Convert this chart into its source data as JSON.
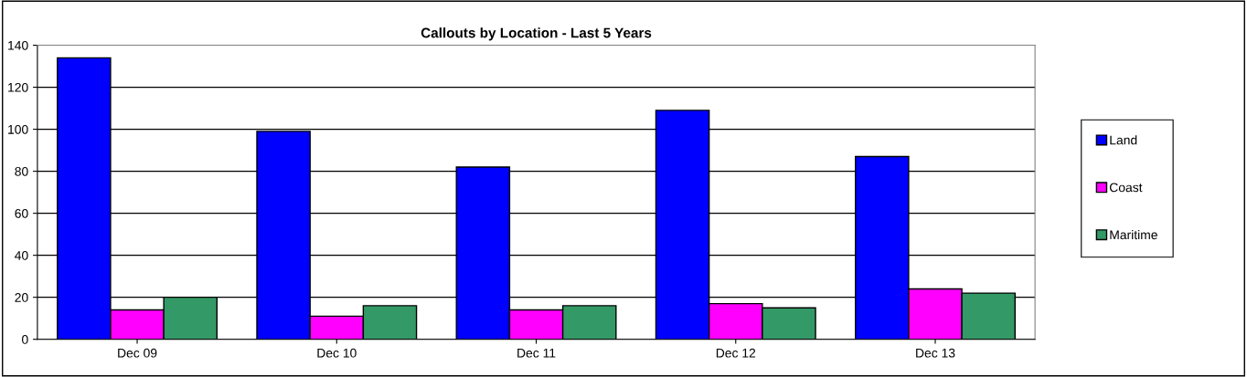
{
  "chart_data": {
    "type": "bar",
    "title": "Callouts by Location - Last 5 Years",
    "categories": [
      "Dec 09",
      "Dec 10",
      "Dec 11",
      "Dec 12",
      "Dec 13"
    ],
    "series": [
      {
        "name": "Land",
        "color": "#0000ff",
        "values": [
          134,
          99,
          82,
          109,
          87
        ]
      },
      {
        "name": "Coast",
        "color": "#ff00ff",
        "values": [
          14,
          11,
          14,
          17,
          24
        ]
      },
      {
        "name": "Maritime",
        "color": "#339966",
        "values": [
          20,
          16,
          16,
          15,
          22
        ]
      }
    ],
    "ylim": [
      0,
      140
    ],
    "yticks": [
      0,
      20,
      40,
      60,
      80,
      100,
      120,
      140
    ],
    "grid": "y",
    "legend": "right"
  }
}
